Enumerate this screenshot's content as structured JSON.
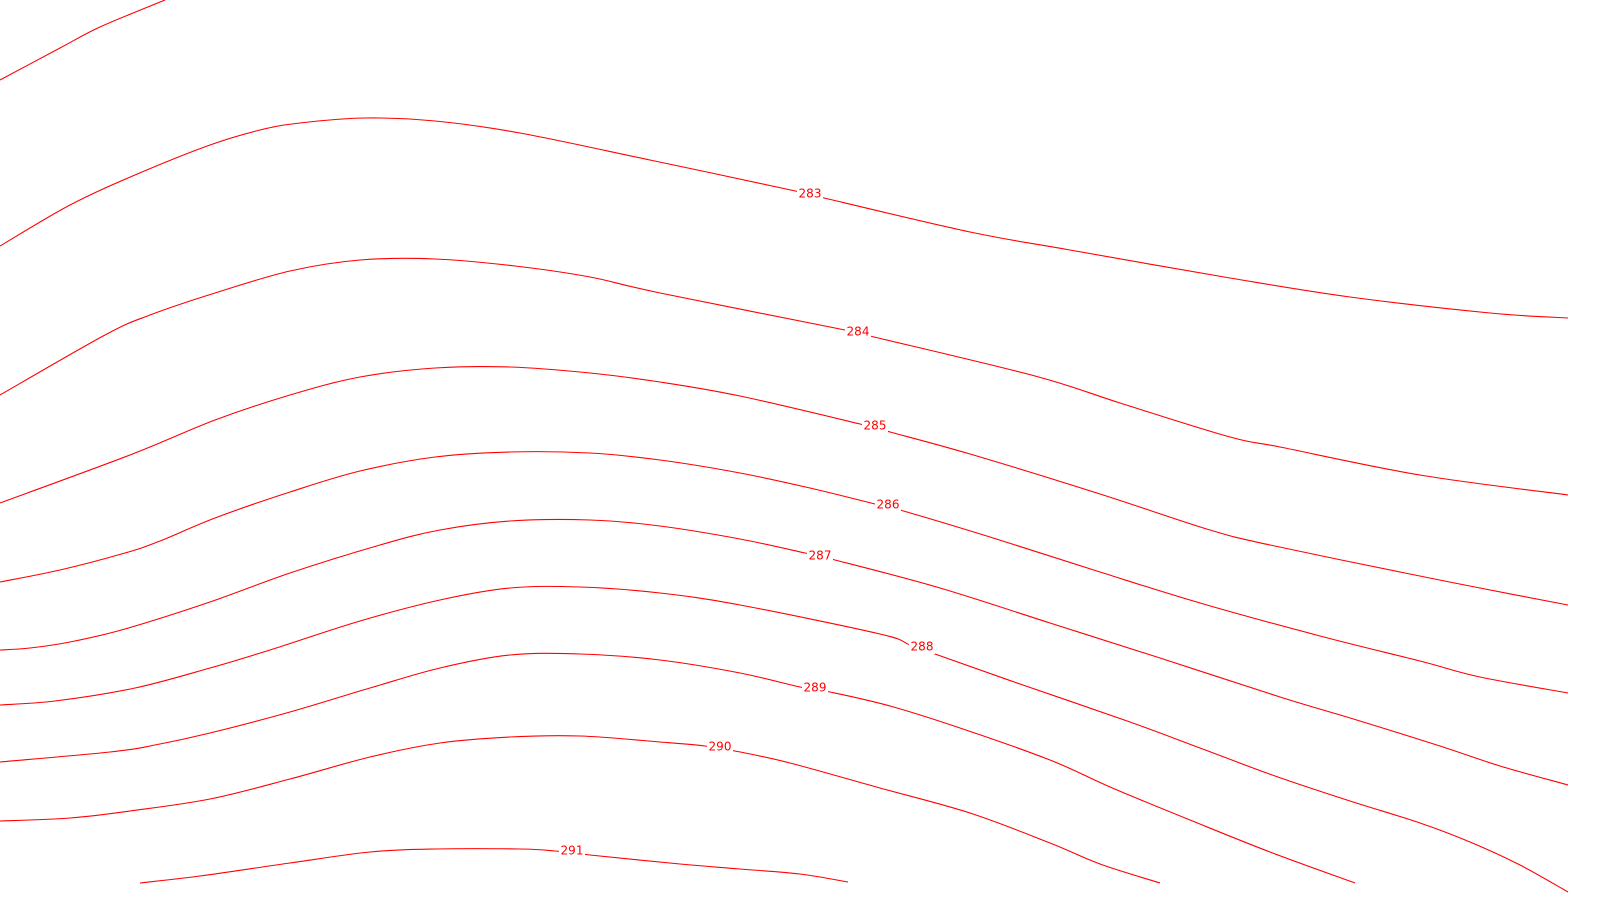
{
  "map": {
    "background_color": "#ffffff",
    "contour_color": "#ff0000",
    "contours": [
      {
        "id": "c-top",
        "label": ""
      },
      {
        "id": "c-283",
        "label": "283"
      },
      {
        "id": "c-284",
        "label": "284"
      },
      {
        "id": "c-285",
        "label": "285"
      },
      {
        "id": "c-286",
        "label": "286"
      },
      {
        "id": "c-287",
        "label": "287"
      },
      {
        "id": "c-288",
        "label": "288"
      },
      {
        "id": "c-289",
        "label": "289"
      },
      {
        "id": "c-290",
        "label": "290"
      },
      {
        "id": "c-291",
        "label": "291"
      }
    ]
  }
}
